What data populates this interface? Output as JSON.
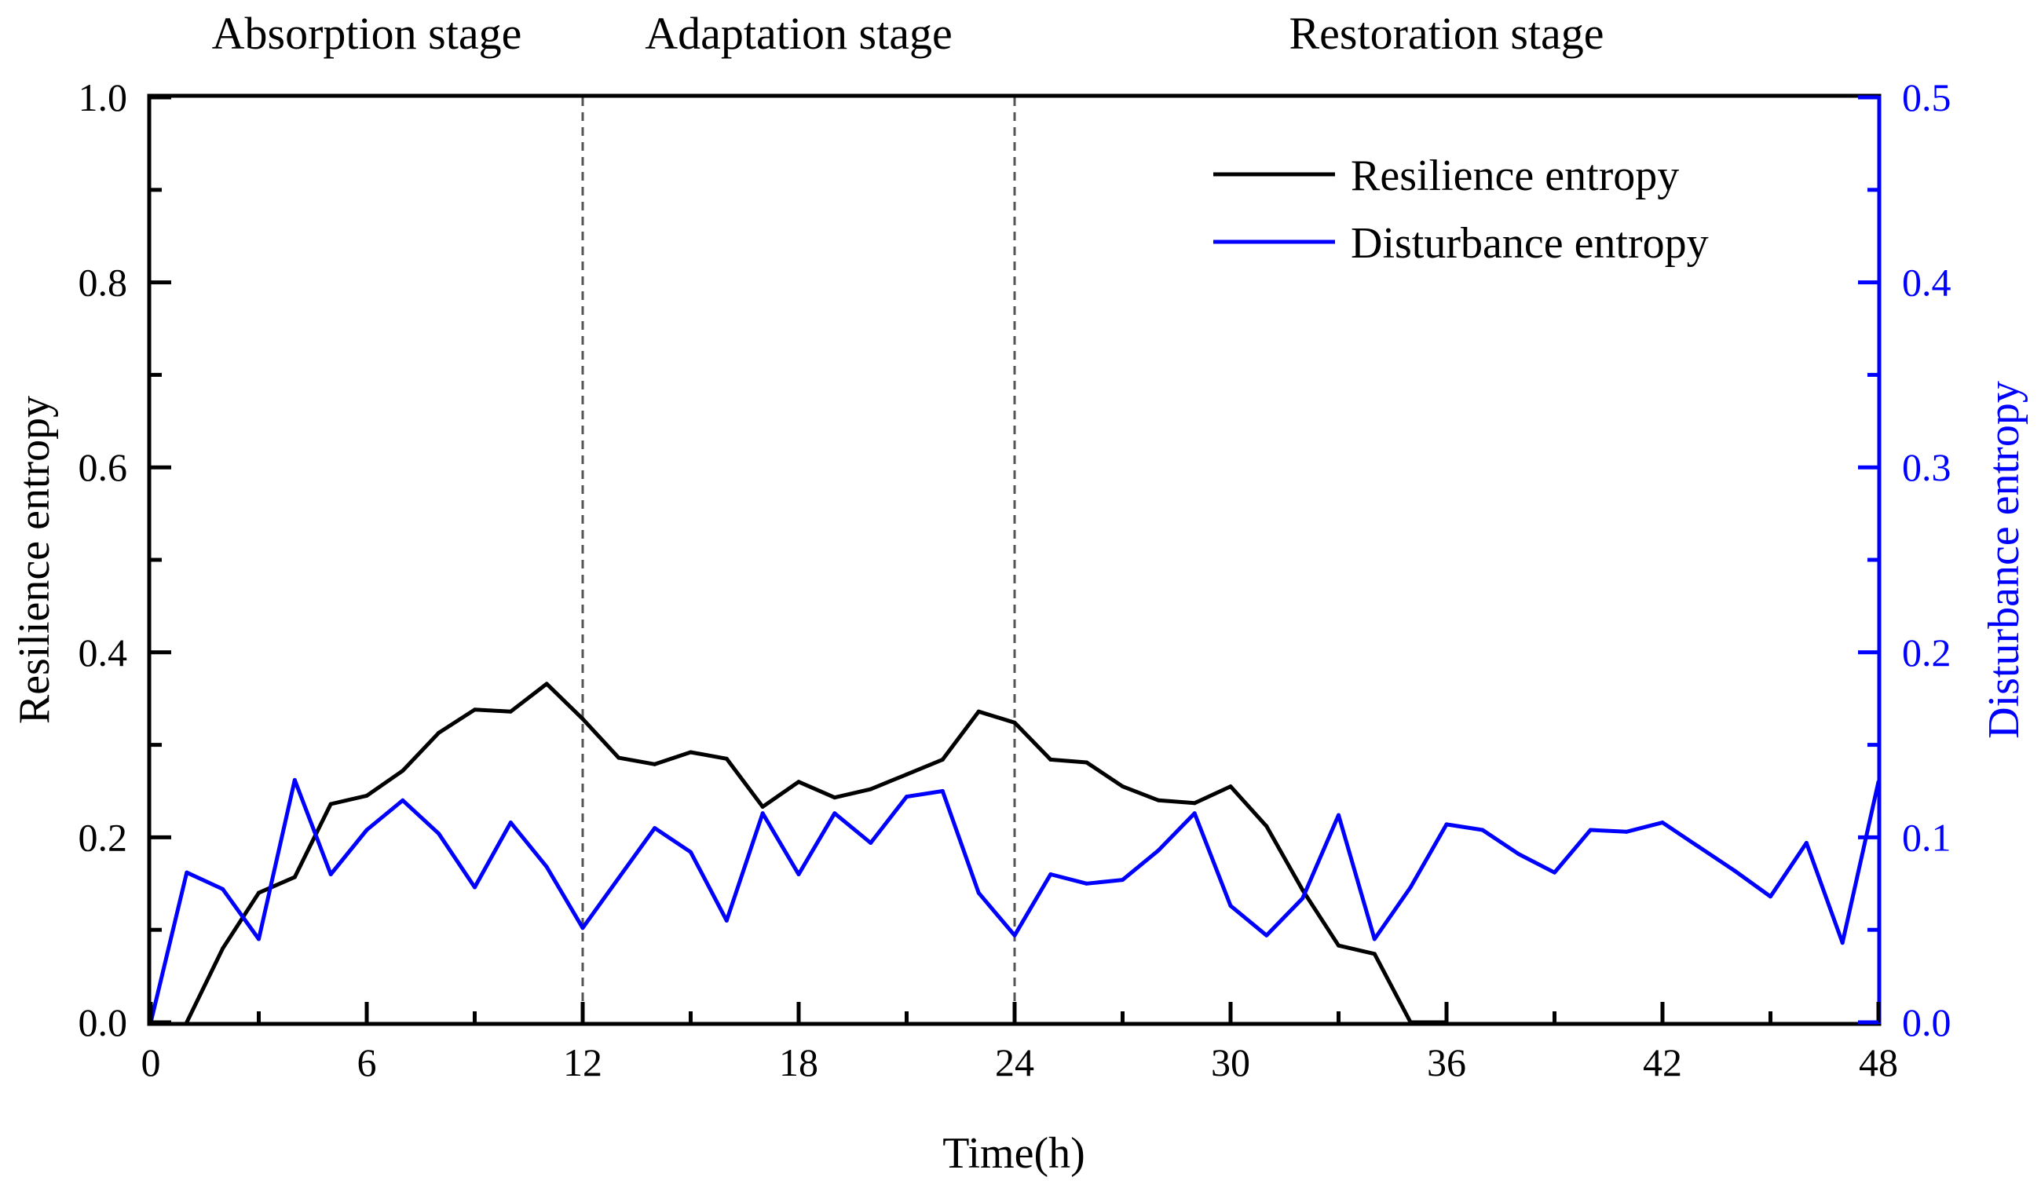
{
  "chart_data": {
    "type": "line",
    "xlabel": "Time(h)",
    "ylabel": "Resilience entropy",
    "y2label": "Disturbance entropy",
    "xlim": [
      0,
      48
    ],
    "ylim": [
      0,
      1.0
    ],
    "y2lim": [
      0,
      0.5
    ],
    "xticks": [
      "0",
      "6",
      "12",
      "18",
      "24",
      "30",
      "36",
      "42",
      "48"
    ],
    "yticks": [
      "0.0",
      "0.2",
      "0.4",
      "0.6",
      "0.8",
      "1.0"
    ],
    "y2ticks": [
      "0.0",
      "0.1",
      "0.2",
      "0.3",
      "0.4",
      "0.5"
    ],
    "stages": [
      {
        "label": "Absorption stage",
        "start": 0,
        "end": 12
      },
      {
        "label": "Adaptation stage",
        "start": 12,
        "end": 24
      },
      {
        "label": "Restoration stage",
        "start": 24,
        "end": 48
      }
    ],
    "legend_position": "top-right",
    "colors": {
      "resilience": "#000000",
      "disturbance": "#0000ff",
      "divider": "#555555"
    },
    "series": [
      {
        "name": "Resilience entropy",
        "axis": "left",
        "x": [
          1,
          2,
          3,
          4,
          5,
          6,
          7,
          8,
          9,
          10,
          11,
          12,
          13,
          14,
          15,
          16,
          17,
          18,
          19,
          20,
          21,
          22,
          23,
          24,
          25,
          26,
          27,
          28,
          29,
          30,
          31,
          32,
          33,
          34,
          35,
          36
        ],
        "values": [
          0.0,
          0.08,
          0.14,
          0.157,
          0.236,
          0.245,
          0.272,
          0.313,
          0.338,
          0.336,
          0.366,
          0.328,
          0.286,
          0.279,
          0.292,
          0.285,
          0.233,
          0.26,
          0.243,
          0.252,
          0.268,
          0.284,
          0.336,
          0.324,
          0.284,
          0.281,
          0.255,
          0.24,
          0.237,
          0.255,
          0.212,
          0.143,
          0.083,
          0.074,
          0.0,
          0.0
        ]
      },
      {
        "name": "Disturbance entropy",
        "axis": "right",
        "x": [
          0,
          1,
          2,
          3,
          4,
          5,
          6,
          7,
          8,
          9,
          10,
          11,
          12,
          13,
          14,
          15,
          16,
          17,
          18,
          19,
          20,
          21,
          22,
          23,
          24,
          25,
          26,
          27,
          28,
          29,
          30,
          31,
          32,
          33,
          34,
          35,
          36,
          37,
          38,
          39,
          40,
          41,
          42,
          43,
          44,
          45,
          46,
          47,
          48
        ],
        "values": [
          0.0,
          0.081,
          0.072,
          0.045,
          0.131,
          0.08,
          0.104,
          0.12,
          0.102,
          0.073,
          0.108,
          0.084,
          0.051,
          0.078,
          0.105,
          0.092,
          0.055,
          0.113,
          0.08,
          0.113,
          0.097,
          0.122,
          0.125,
          0.07,
          0.047,
          0.08,
          0.075,
          0.077,
          0.093,
          0.113,
          0.063,
          0.047,
          0.067,
          0.112,
          0.045,
          0.073,
          0.107,
          0.104,
          0.091,
          0.081,
          0.104,
          0.103,
          0.108,
          0.095,
          0.082,
          0.068,
          0.097,
          0.043,
          0.13
        ]
      }
    ]
  }
}
